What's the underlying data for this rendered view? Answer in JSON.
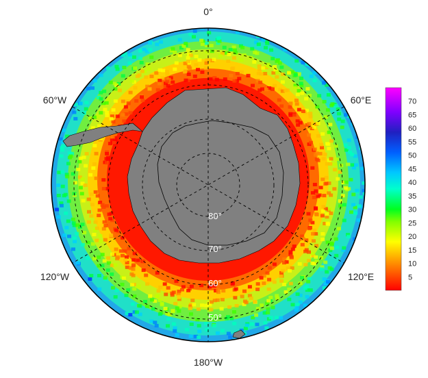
{
  "map": {
    "projection": "south-polar-stereographic",
    "longitude_labels": {
      "top": "0°",
      "upper_right": "60°E",
      "lower_right": "120°E",
      "bottom": "180°W",
      "lower_left": "120°W",
      "upper_left": "60°W"
    },
    "latitude_labels": [
      "80°",
      "70°",
      "60°",
      "50°"
    ],
    "land_color": "#808080",
    "coastline_color": "#000000"
  },
  "colorbar": {
    "min": 0,
    "max": 75,
    "ticks": [
      "5",
      "10",
      "15",
      "20",
      "25",
      "30",
      "35",
      "40",
      "45",
      "50",
      "55",
      "60",
      "65",
      "70"
    ],
    "colors": [
      "#ff0000",
      "#ff4000",
      "#ff8000",
      "#ffbf00",
      "#ffff00",
      "#bfff00",
      "#40ff00",
      "#00ff40",
      "#00ffbf",
      "#00d0ff",
      "#0080ff",
      "#0030ff",
      "#3000c0",
      "#8000ff",
      "#ff00ff"
    ]
  }
}
